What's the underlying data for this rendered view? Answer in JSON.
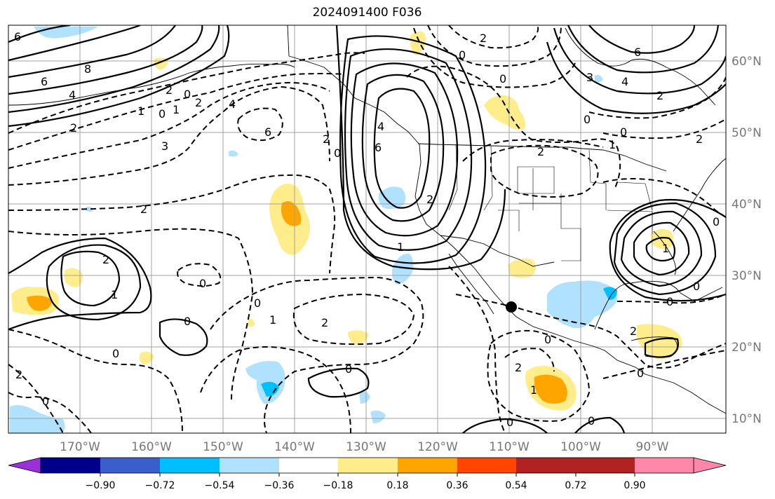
{
  "title": "2024091400 F036",
  "latitude_labels": [
    "60°N",
    "50°N",
    "40°N",
    "30°N",
    "20°N",
    "10°N"
  ],
  "longitude_labels": [
    "170°W",
    "160°W",
    "150°W",
    "140°W",
    "130°W",
    "120°W",
    "110°W",
    "100°W",
    "90°W"
  ],
  "colorbar": {
    "ticks": [
      "−0.90",
      "−0.72",
      "−0.54",
      "−0.36",
      "−0.18",
      "0.18",
      "0.36",
      "0.54",
      "0.72",
      "0.90"
    ],
    "colors": [
      "#9b30d9",
      "#00008b",
      "#3a5fcd",
      "#00bfff",
      "#b0e2ff",
      "#ffffff",
      "#ffec8b",
      "#ffa500",
      "#ff4500",
      "#b22222",
      "#ff88aa"
    ]
  },
  "contour_labels": [
    "6",
    "8",
    "6",
    "4",
    "2",
    "0",
    "1",
    "2",
    "0",
    "1",
    "3",
    "4",
    "6",
    "2",
    "2",
    "0",
    "2",
    "0",
    "6",
    "4",
    "2",
    "2",
    "0",
    "2",
    "1",
    "0",
    "0",
    "0",
    "2",
    "1",
    "0",
    "0",
    "0",
    "2",
    "0",
    "2",
    "1",
    "0",
    "1",
    "2",
    "6",
    "3",
    "4",
    "2",
    "0",
    "0",
    "1",
    "2",
    "0",
    "0",
    "0",
    "2",
    "0",
    "1",
    "0"
  ],
  "colors": {
    "solid": "#000000",
    "grid": "#a0a0a0",
    "coast": "#000000"
  }
}
